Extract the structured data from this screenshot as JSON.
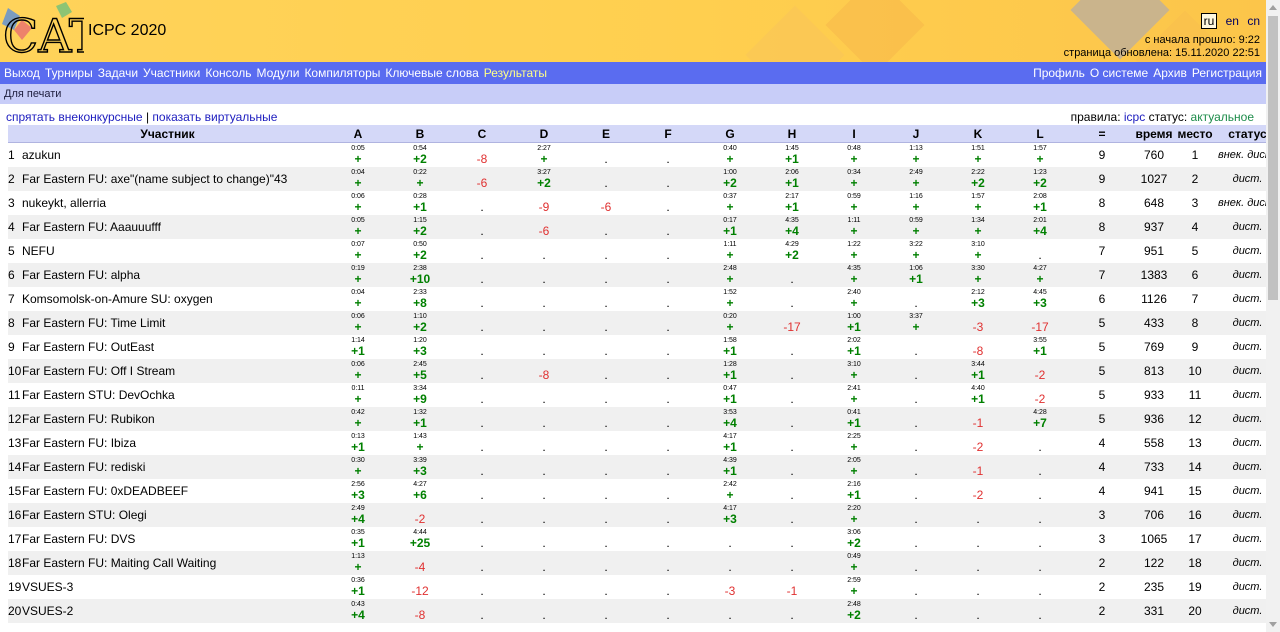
{
  "header": {
    "logo_text": "CATS",
    "title": "ICPC 2020",
    "lang_current": "ru",
    "lang_en": "en",
    "lang_cn": "cn",
    "since_start": "с начала прошло: 9:22",
    "updated": "страница обновлена: 15.11.2020 22:51"
  },
  "menu": {
    "left": [
      "Выход",
      "Турниры",
      "Задачи",
      "Участники",
      "Консоль",
      "Модули",
      "Компиляторы",
      "Ключевые слова",
      "Результаты"
    ],
    "active": "Результаты",
    "right": [
      "Профиль",
      "О системе",
      "Архив",
      "Регистрация"
    ]
  },
  "subbar": {
    "print_label": "Для печати"
  },
  "filters": {
    "hide_out_of_contest": "спрятать внеконкурсные",
    "separator": "|",
    "show_virtual": "показать виртуальные"
  },
  "rules": {
    "rules_label": "правила:",
    "rules_value": "icpc",
    "status_label": "статус:",
    "status_value": "актуальное"
  },
  "table": {
    "headers": [
      "Участник",
      "A",
      "B",
      "C",
      "D",
      "E",
      "F",
      "G",
      "H",
      "I",
      "J",
      "K",
      "L",
      "=",
      "время",
      "место",
      "статус"
    ],
    "rows": [
      {
        "n": "1",
        "team": "azukun",
        "cells": [
          [
            "0:05",
            "+"
          ],
          [
            "0:54",
            "+2"
          ],
          [
            "",
            "-8"
          ],
          [
            "2:27",
            "+"
          ],
          [
            "",
            "."
          ],
          [
            "",
            "."
          ],
          [
            "0:40",
            "+"
          ],
          [
            "1:45",
            "+1"
          ],
          [
            "0:48",
            "+"
          ],
          [
            "1:13",
            "+"
          ],
          [
            "1:51",
            "+"
          ],
          [
            "1:57",
            "+"
          ]
        ],
        "solved": "9",
        "time": "760",
        "place": "1",
        "status": "внек. дист."
      },
      {
        "n": "2",
        "team": "Far Eastern FU: axe\"(name subject to change)\"43",
        "cells": [
          [
            "0:04",
            "+"
          ],
          [
            "0:22",
            "+"
          ],
          [
            "",
            "-6"
          ],
          [
            "3:27",
            "+2"
          ],
          [
            "",
            "."
          ],
          [
            "",
            "."
          ],
          [
            "1:00",
            "+2"
          ],
          [
            "2:06",
            "+1"
          ],
          [
            "0:34",
            "+"
          ],
          [
            "2:49",
            "+"
          ],
          [
            "2:22",
            "+2"
          ],
          [
            "1:23",
            "+2"
          ]
        ],
        "solved": "9",
        "time": "1027",
        "place": "2",
        "status": "дист."
      },
      {
        "n": "3",
        "team": "nukeykt, allerria",
        "cells": [
          [
            "0:06",
            "+"
          ],
          [
            "0:28",
            "+1"
          ],
          [
            "",
            "."
          ],
          [
            "",
            "-9"
          ],
          [
            "",
            "-6"
          ],
          [
            "",
            "."
          ],
          [
            "0:37",
            "+"
          ],
          [
            "2:17",
            "+1"
          ],
          [
            "0:59",
            "+"
          ],
          [
            "1:16",
            "+"
          ],
          [
            "1:57",
            "+"
          ],
          [
            "2:08",
            "+1"
          ]
        ],
        "solved": "8",
        "time": "648",
        "place": "3",
        "status": "внек. дист."
      },
      {
        "n": "4",
        "team": "Far Eastern FU: Aaauuufff",
        "cells": [
          [
            "0:05",
            "+"
          ],
          [
            "1:15",
            "+2"
          ],
          [
            "",
            "."
          ],
          [
            "",
            "-6"
          ],
          [
            "",
            "."
          ],
          [
            "",
            "."
          ],
          [
            "0:17",
            "+1"
          ],
          [
            "4:35",
            "+4"
          ],
          [
            "1:11",
            "+"
          ],
          [
            "0:59",
            "+"
          ],
          [
            "1:34",
            "+"
          ],
          [
            "2:01",
            "+4"
          ]
        ],
        "solved": "8",
        "time": "937",
        "place": "4",
        "status": "дист."
      },
      {
        "n": "5",
        "team": "NEFU",
        "cells": [
          [
            "0:07",
            "+"
          ],
          [
            "0:50",
            "+2"
          ],
          [
            "",
            "."
          ],
          [
            "",
            "."
          ],
          [
            "",
            "."
          ],
          [
            "",
            "."
          ],
          [
            "1:11",
            "+"
          ],
          [
            "4:29",
            "+2"
          ],
          [
            "1:22",
            "+"
          ],
          [
            "3:22",
            "+"
          ],
          [
            "3:10",
            "+"
          ],
          [
            "",
            "."
          ]
        ],
        "solved": "7",
        "time": "951",
        "place": "5",
        "status": "дист."
      },
      {
        "n": "6",
        "team": "Far Eastern FU: alpha",
        "cells": [
          [
            "0:19",
            "+"
          ],
          [
            "2:38",
            "+10"
          ],
          [
            "",
            "."
          ],
          [
            "",
            "."
          ],
          [
            "",
            "."
          ],
          [
            "",
            "."
          ],
          [
            "2:48",
            "+"
          ],
          [
            "",
            "."
          ],
          [
            "4:35",
            "+"
          ],
          [
            "1:06",
            "+1"
          ],
          [
            "3:30",
            "+"
          ],
          [
            "4:27",
            "+"
          ]
        ],
        "solved": "7",
        "time": "1383",
        "place": "6",
        "status": "дист."
      },
      {
        "n": "7",
        "team": "Komsomolsk-on-Amure SU: oxygen",
        "cells": [
          [
            "0:04",
            "+"
          ],
          [
            "2:33",
            "+8"
          ],
          [
            "",
            "."
          ],
          [
            "",
            "."
          ],
          [
            "",
            "."
          ],
          [
            "",
            "."
          ],
          [
            "1:52",
            "+"
          ],
          [
            "",
            "."
          ],
          [
            "2:40",
            "+"
          ],
          [
            "",
            "."
          ],
          [
            "2:12",
            "+3"
          ],
          [
            "4:45",
            "+3"
          ]
        ],
        "solved": "6",
        "time": "1126",
        "place": "7",
        "status": "дист."
      },
      {
        "n": "8",
        "team": "Far Eastern FU: Time Limit",
        "cells": [
          [
            "0:06",
            "+"
          ],
          [
            "1:10",
            "+2"
          ],
          [
            "",
            "."
          ],
          [
            "",
            "."
          ],
          [
            "",
            "."
          ],
          [
            "",
            "."
          ],
          [
            "0:20",
            "+"
          ],
          [
            "",
            "-17"
          ],
          [
            "1:00",
            "+1"
          ],
          [
            "3:37",
            "+"
          ],
          [
            "",
            "-3"
          ],
          [
            "",
            "-17"
          ]
        ],
        "solved": "5",
        "time": "433",
        "place": "8",
        "status": "дист."
      },
      {
        "n": "9",
        "team": "Far Eastern FU: OutEast",
        "cells": [
          [
            "1:14",
            "+1"
          ],
          [
            "1:20",
            "+3"
          ],
          [
            "",
            "."
          ],
          [
            "",
            "."
          ],
          [
            "",
            "."
          ],
          [
            "",
            "."
          ],
          [
            "1:58",
            "+1"
          ],
          [
            "",
            "."
          ],
          [
            "2:02",
            "+1"
          ],
          [
            "",
            "."
          ],
          [
            "",
            "-8"
          ],
          [
            "3:55",
            "+1"
          ]
        ],
        "solved": "5",
        "time": "769",
        "place": "9",
        "status": "дист."
      },
      {
        "n": "10",
        "team": "Far Eastern FU: Off I Stream",
        "cells": [
          [
            "0:06",
            "+"
          ],
          [
            "2:45",
            "+5"
          ],
          [
            "",
            "."
          ],
          [
            "",
            "-8"
          ],
          [
            "",
            "."
          ],
          [
            "",
            "."
          ],
          [
            "1:28",
            "+1"
          ],
          [
            "",
            "."
          ],
          [
            "3:10",
            "+"
          ],
          [
            "",
            "."
          ],
          [
            "3:44",
            "+1"
          ],
          [
            "",
            "-2"
          ]
        ],
        "solved": "5",
        "time": "813",
        "place": "10",
        "status": "дист."
      },
      {
        "n": "11",
        "team": "Far Eastern STU: DevOchka",
        "cells": [
          [
            "0:11",
            "+"
          ],
          [
            "3:34",
            "+9"
          ],
          [
            "",
            "."
          ],
          [
            "",
            "."
          ],
          [
            "",
            "."
          ],
          [
            "",
            "."
          ],
          [
            "0:47",
            "+1"
          ],
          [
            "",
            "."
          ],
          [
            "2:41",
            "+"
          ],
          [
            "",
            "."
          ],
          [
            "4:40",
            "+1"
          ],
          [
            "",
            "-2"
          ]
        ],
        "solved": "5",
        "time": "933",
        "place": "11",
        "status": "дист."
      },
      {
        "n": "12",
        "team": "Far Eastern FU: Rubikon",
        "cells": [
          [
            "0:42",
            "+"
          ],
          [
            "1:32",
            "+1"
          ],
          [
            "",
            "."
          ],
          [
            "",
            "."
          ],
          [
            "",
            "."
          ],
          [
            "",
            "."
          ],
          [
            "3:53",
            "+4"
          ],
          [
            "",
            "."
          ],
          [
            "0:41",
            "+1"
          ],
          [
            "",
            "."
          ],
          [
            "",
            "-1"
          ],
          [
            "4:28",
            "+7"
          ]
        ],
        "solved": "5",
        "time": "936",
        "place": "12",
        "status": "дист."
      },
      {
        "n": "13",
        "team": "Far Eastern FU: Ibiza",
        "cells": [
          [
            "0:13",
            "+1"
          ],
          [
            "1:43",
            "+"
          ],
          [
            "",
            "."
          ],
          [
            "",
            "."
          ],
          [
            "",
            "."
          ],
          [
            "",
            "."
          ],
          [
            "4:17",
            "+1"
          ],
          [
            "",
            "."
          ],
          [
            "2:25",
            "+"
          ],
          [
            "",
            "."
          ],
          [
            "",
            "-2"
          ],
          [
            "",
            "."
          ]
        ],
        "solved": "4",
        "time": "558",
        "place": "13",
        "status": "дист."
      },
      {
        "n": "14",
        "team": "Far Eastern FU: rediski",
        "cells": [
          [
            "0:30",
            "+"
          ],
          [
            "3:39",
            "+3"
          ],
          [
            "",
            "."
          ],
          [
            "",
            "."
          ],
          [
            "",
            "."
          ],
          [
            "",
            "."
          ],
          [
            "4:39",
            "+1"
          ],
          [
            "",
            "."
          ],
          [
            "2:05",
            "+"
          ],
          [
            "",
            "."
          ],
          [
            "",
            "-1"
          ],
          [
            "",
            "."
          ]
        ],
        "solved": "4",
        "time": "733",
        "place": "14",
        "status": "дист."
      },
      {
        "n": "15",
        "team": "Far Eastern FU: 0xDEADBEEF",
        "cells": [
          [
            "2:56",
            "+3"
          ],
          [
            "4:27",
            "+6"
          ],
          [
            "",
            "."
          ],
          [
            "",
            "."
          ],
          [
            "",
            "."
          ],
          [
            "",
            "."
          ],
          [
            "2:42",
            "+"
          ],
          [
            "",
            "."
          ],
          [
            "2:16",
            "+1"
          ],
          [
            "",
            "."
          ],
          [
            "",
            "-2"
          ],
          [
            "",
            "."
          ]
        ],
        "solved": "4",
        "time": "941",
        "place": "15",
        "status": "дист."
      },
      {
        "n": "16",
        "team": "Far Eastern STU: Olegi",
        "cells": [
          [
            "2:49",
            "+4"
          ],
          [
            "",
            "-2"
          ],
          [
            "",
            "."
          ],
          [
            "",
            "."
          ],
          [
            "",
            "."
          ],
          [
            "",
            "."
          ],
          [
            "4:17",
            "+3"
          ],
          [
            "",
            "."
          ],
          [
            "2:20",
            "+"
          ],
          [
            "",
            "."
          ],
          [
            "",
            "."
          ],
          [
            "",
            "."
          ]
        ],
        "solved": "3",
        "time": "706",
        "place": "16",
        "status": "дист."
      },
      {
        "n": "17",
        "team": "Far Eastern FU: DVS",
        "cells": [
          [
            "0:35",
            "+1"
          ],
          [
            "4:44",
            "+25"
          ],
          [
            "",
            "."
          ],
          [
            "",
            "."
          ],
          [
            "",
            "."
          ],
          [
            "",
            "."
          ],
          [
            "",
            "."
          ],
          [
            "",
            "."
          ],
          [
            "3:06",
            "+2"
          ],
          [
            "",
            "."
          ],
          [
            "",
            "."
          ],
          [
            "",
            "."
          ]
        ],
        "solved": "3",
        "time": "1065",
        "place": "17",
        "status": "дист."
      },
      {
        "n": "18",
        "team": "Far Eastern FU: Maiting Call Waiting",
        "cells": [
          [
            "1:13",
            "+"
          ],
          [
            "",
            "-4"
          ],
          [
            "",
            "."
          ],
          [
            "",
            "."
          ],
          [
            "",
            "."
          ],
          [
            "",
            "."
          ],
          [
            "",
            "."
          ],
          [
            "",
            "."
          ],
          [
            "0:49",
            "+"
          ],
          [
            "",
            "."
          ],
          [
            "",
            "."
          ],
          [
            "",
            "."
          ]
        ],
        "solved": "2",
        "time": "122",
        "place": "18",
        "status": "дист."
      },
      {
        "n": "19",
        "team": "VSUES-3",
        "cells": [
          [
            "0:36",
            "+1"
          ],
          [
            "",
            "-12"
          ],
          [
            "",
            "."
          ],
          [
            "",
            "."
          ],
          [
            "",
            "."
          ],
          [
            "",
            "."
          ],
          [
            "",
            "-3"
          ],
          [
            "",
            "-1"
          ],
          [
            "2:59",
            "+"
          ],
          [
            "",
            "."
          ],
          [
            "",
            "."
          ],
          [
            "",
            "."
          ]
        ],
        "solved": "2",
        "time": "235",
        "place": "19",
        "status": "дист."
      },
      {
        "n": "20",
        "team": "VSUES-2",
        "cells": [
          [
            "0:43",
            "+4"
          ],
          [
            "",
            "-8"
          ],
          [
            "",
            "."
          ],
          [
            "",
            "."
          ],
          [
            "",
            "."
          ],
          [
            "",
            "."
          ],
          [
            "",
            "."
          ],
          [
            "",
            "."
          ],
          [
            "2:48",
            "+2"
          ],
          [
            "",
            "."
          ],
          [
            "",
            "."
          ],
          [
            "",
            "."
          ]
        ],
        "solved": "2",
        "time": "331",
        "place": "20",
        "status": "дист."
      }
    ]
  },
  "colors": {
    "header_bg": "#ffd35a",
    "menu_bg": "#5a6cf0",
    "accepted": "#008000",
    "rejected": "#e03030"
  },
  "icons": {
    "logo": "cats-logo",
    "scrollbar": "scrollbar"
  }
}
